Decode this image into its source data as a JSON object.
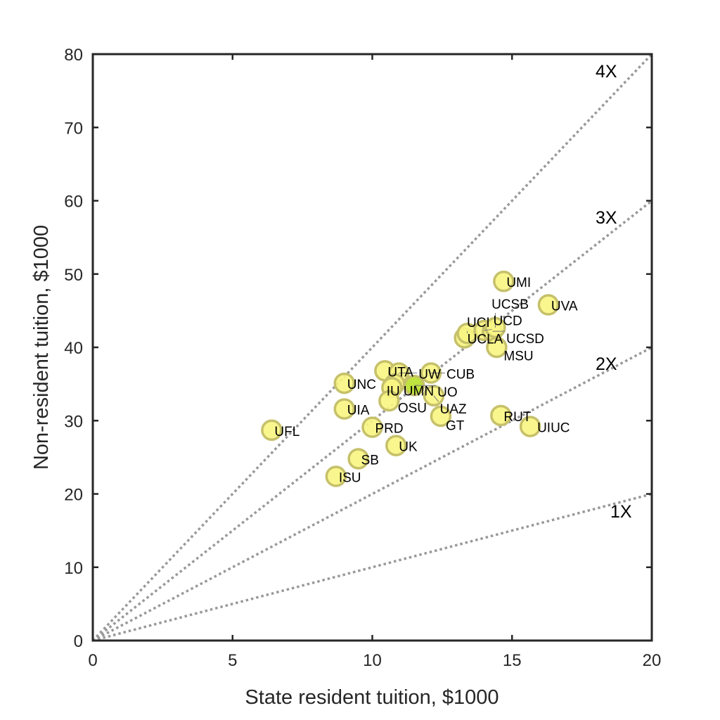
{
  "chart_data": {
    "type": "scatter",
    "title": "",
    "xlabel": "State resident tuition, $1000",
    "ylabel": "Non-resident tuition, $1000",
    "xlim": [
      0,
      20
    ],
    "ylim": [
      0,
      80
    ],
    "xticks": [
      0,
      5,
      10,
      15,
      20
    ],
    "yticks": [
      0,
      10,
      20,
      30,
      40,
      50,
      60,
      70,
      80
    ],
    "grid": false,
    "ratio_lines": [
      {
        "label": "1X",
        "multiplier": 1
      },
      {
        "label": "2X",
        "multiplier": 2
      },
      {
        "label": "3X",
        "multiplier": 3
      },
      {
        "label": "4X",
        "multiplier": 4
      }
    ],
    "colors": {
      "marker_fill": "#f8f582",
      "marker_edge": "#c6c16a",
      "highlight_fill": "#b8e02a",
      "ratio_line": "#999999",
      "axis": "#262626"
    },
    "points": [
      {
        "label": "UMI",
        "x": 14.7,
        "y": 49.0
      },
      {
        "label": "UVA",
        "x": 16.3,
        "y": 45.8
      },
      {
        "label": "UCLA",
        "x": 13.3,
        "y": 41.3
      },
      {
        "label": "UCI",
        "x": 13.4,
        "y": 41.9
      },
      {
        "label": "UCD",
        "x": 14.0,
        "y": 42.3
      },
      {
        "label": "UCSD",
        "x": 14.3,
        "y": 42.2
      },
      {
        "label": "UCSB",
        "x": 14.4,
        "y": 42.7
      },
      {
        "label": "MSU",
        "x": 14.45,
        "y": 40.0
      },
      {
        "label": "UTA",
        "x": 10.45,
        "y": 36.8
      },
      {
        "label": "UW",
        "x": 10.95,
        "y": 36.5
      },
      {
        "label": "CUB",
        "x": 12.1,
        "y": 36.5
      },
      {
        "label": "UNC",
        "x": 9.0,
        "y": 35.1
      },
      {
        "label": "UMN",
        "x": 10.8,
        "y": 35.0
      },
      {
        "label": "IU",
        "x": 10.7,
        "y": 34.5
      },
      {
        "label": "UO",
        "x": 11.5,
        "y": 34.8,
        "highlight": true
      },
      {
        "label": "OSU",
        "x": 10.6,
        "y": 32.7
      },
      {
        "label": "UAZ",
        "x": 12.2,
        "y": 33.4
      },
      {
        "label": "UIA",
        "x": 9.0,
        "y": 31.6
      },
      {
        "label": "GT",
        "x": 12.45,
        "y": 30.6
      },
      {
        "label": "RUT",
        "x": 14.6,
        "y": 30.7
      },
      {
        "label": "UIUC",
        "x": 15.65,
        "y": 29.2
      },
      {
        "label": "UFL",
        "x": 6.4,
        "y": 28.7
      },
      {
        "label": "PRD",
        "x": 10.0,
        "y": 29.1
      },
      {
        "label": "UK",
        "x": 10.85,
        "y": 26.6
      },
      {
        "label": "SB",
        "x": 9.5,
        "y": 24.8
      },
      {
        "label": "ISU",
        "x": 8.7,
        "y": 22.4
      }
    ]
  }
}
